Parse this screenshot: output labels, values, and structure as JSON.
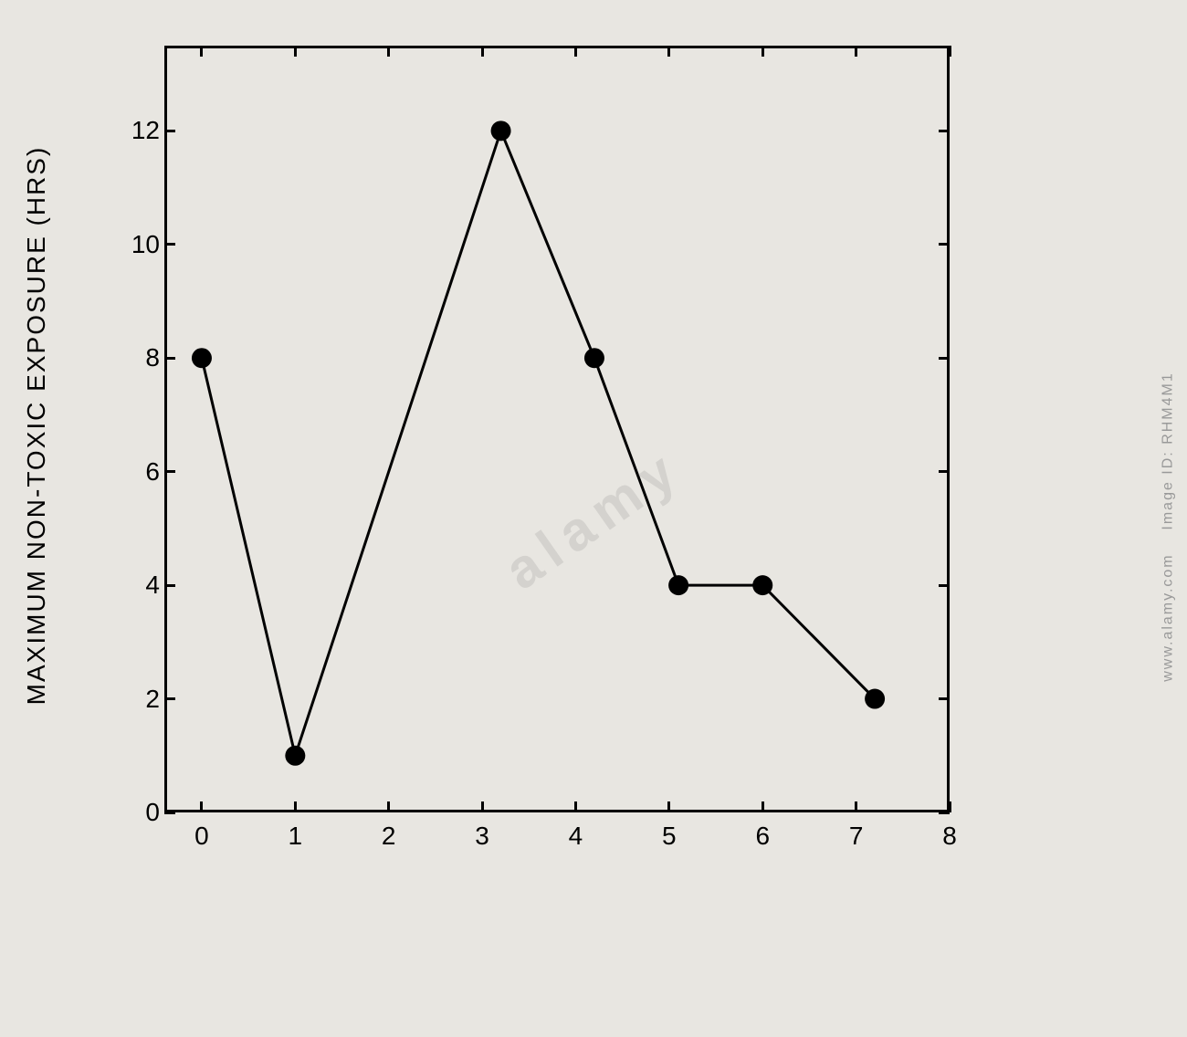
{
  "chart": {
    "type": "line",
    "y_axis_label": "MAXIMUM NON-TOXIC EXPOSURE (HRS)",
    "x_values": [
      0,
      1,
      3.2,
      4.2,
      5.1,
      6,
      7.2
    ],
    "y_values": [
      8,
      1,
      12,
      8,
      4,
      4,
      2
    ],
    "x_ticks": [
      0,
      1,
      2,
      3,
      4,
      5,
      6,
      7,
      8
    ],
    "y_ticks": [
      0,
      2,
      4,
      6,
      8,
      10,
      12
    ],
    "xlim": [
      -0.4,
      8
    ],
    "ylim": [
      0,
      13.5
    ],
    "marker_radius": 11,
    "marker_color": "#000000",
    "line_color": "#000000",
    "line_width": 3,
    "background_color": "#e8e6e1",
    "border_color": "#000000",
    "label_fontsize": 28,
    "tick_fontsize": 28
  },
  "watermark": {
    "brand": "a l a m y",
    "diagonal": "alamy",
    "image_id": "Image ID: RHM4M1",
    "url": "www.alamy.com"
  }
}
